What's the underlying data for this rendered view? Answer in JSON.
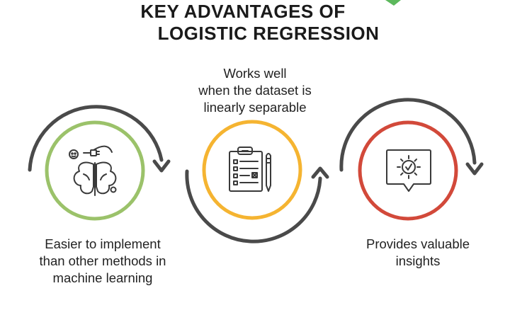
{
  "title": {
    "line1": "KEY ADVANTAGES OF",
    "line2": "LOGISTIC REGRESSION"
  },
  "items": [
    {
      "icon": "brain-icon",
      "ring_color": "#9bc26a",
      "caption_lines": [
        "Easier to implement",
        "than other methods in",
        "machine learning"
      ]
    },
    {
      "icon": "checklist-clipboard-icon",
      "ring_color": "#f5b431",
      "caption_lines": [
        "Works well",
        "when the dataset is",
        "linearly separable"
      ]
    },
    {
      "icon": "idea-bubble-icon",
      "ring_color": "#d2493a",
      "caption_lines": [
        "Provides valuable",
        "insights"
      ]
    }
  ],
  "colors": {
    "arrow": "#4a4a4a",
    "icon_stroke": "#3a3a3a",
    "accent_green": "#5cb85c"
  }
}
